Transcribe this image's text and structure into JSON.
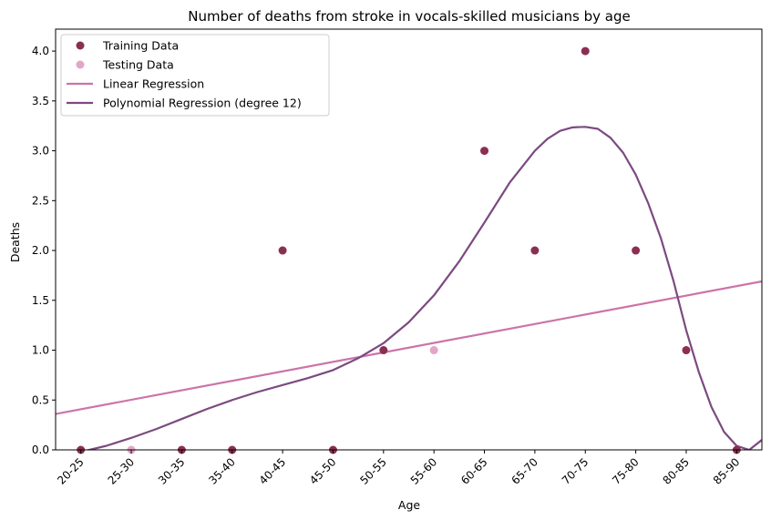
{
  "chart_data": {
    "type": "scatter",
    "title": "Number of deaths from stroke in vocals-skilled musicians by age",
    "xlabel": "Age",
    "ylabel": "Deaths",
    "categories": [
      "20-25",
      "25-30",
      "30-35",
      "35-40",
      "40-45",
      "45-50",
      "50-55",
      "55-60",
      "60-65",
      "65-70",
      "70-75",
      "75-80",
      "80-85",
      "85-90"
    ],
    "xlim": [
      -0.5,
      13.5
    ],
    "ylim": [
      0,
      4.22
    ],
    "yticks": [
      "0.0",
      "0.5",
      "1.0",
      "1.5",
      "2.0",
      "2.5",
      "3.0",
      "3.5",
      "4.0"
    ],
    "colors": {
      "training": "#8b2f52",
      "testing": "#e2a6c9",
      "linear": "#cc73a8",
      "polynomial": "#7b4a80"
    },
    "legend_position": "upper-left",
    "series": [
      {
        "name": "Training Data",
        "kind": "points",
        "points": [
          [
            0,
            0
          ],
          [
            2,
            0
          ],
          [
            3,
            0
          ],
          [
            4,
            2
          ],
          [
            5,
            0
          ],
          [
            6,
            1
          ],
          [
            8,
            3
          ],
          [
            9,
            2
          ],
          [
            10,
            4
          ],
          [
            11,
            2
          ],
          [
            12,
            1
          ],
          [
            13,
            0
          ]
        ]
      },
      {
        "name": "Testing Data",
        "kind": "points",
        "points": [
          [
            1,
            0
          ],
          [
            7,
            1
          ]
        ]
      },
      {
        "name": "Linear Regression",
        "kind": "line",
        "points": [
          [
            -0.5,
            0.36
          ],
          [
            13.5,
            1.69
          ]
        ]
      },
      {
        "name": "Polynomial Regression (degree 12)",
        "kind": "line",
        "points": [
          [
            0,
            -0.02
          ],
          [
            0.5,
            0.04
          ],
          [
            1,
            0.12
          ],
          [
            1.5,
            0.21
          ],
          [
            2,
            0.31
          ],
          [
            2.5,
            0.41
          ],
          [
            3,
            0.5
          ],
          [
            3.5,
            0.58
          ],
          [
            4,
            0.65
          ],
          [
            4.5,
            0.72
          ],
          [
            5,
            0.8
          ],
          [
            5.5,
            0.92
          ],
          [
            6,
            1.07
          ],
          [
            6.5,
            1.28
          ],
          [
            7,
            1.55
          ],
          [
            7.5,
            1.89
          ],
          [
            8,
            2.28
          ],
          [
            8.5,
            2.68
          ],
          [
            9,
            3.0
          ],
          [
            9.25,
            3.12
          ],
          [
            9.5,
            3.2
          ],
          [
            9.75,
            3.235
          ],
          [
            10,
            3.24
          ],
          [
            10.25,
            3.22
          ],
          [
            10.5,
            3.13
          ],
          [
            10.75,
            2.98
          ],
          [
            11,
            2.76
          ],
          [
            11.25,
            2.47
          ],
          [
            11.5,
            2.12
          ],
          [
            11.75,
            1.69
          ],
          [
            12,
            1.2
          ],
          [
            12.25,
            0.78
          ],
          [
            12.5,
            0.43
          ],
          [
            12.75,
            0.18
          ],
          [
            13,
            0.04
          ],
          [
            13.25,
            0.0
          ],
          [
            13.5,
            0.1
          ]
        ]
      }
    ]
  }
}
